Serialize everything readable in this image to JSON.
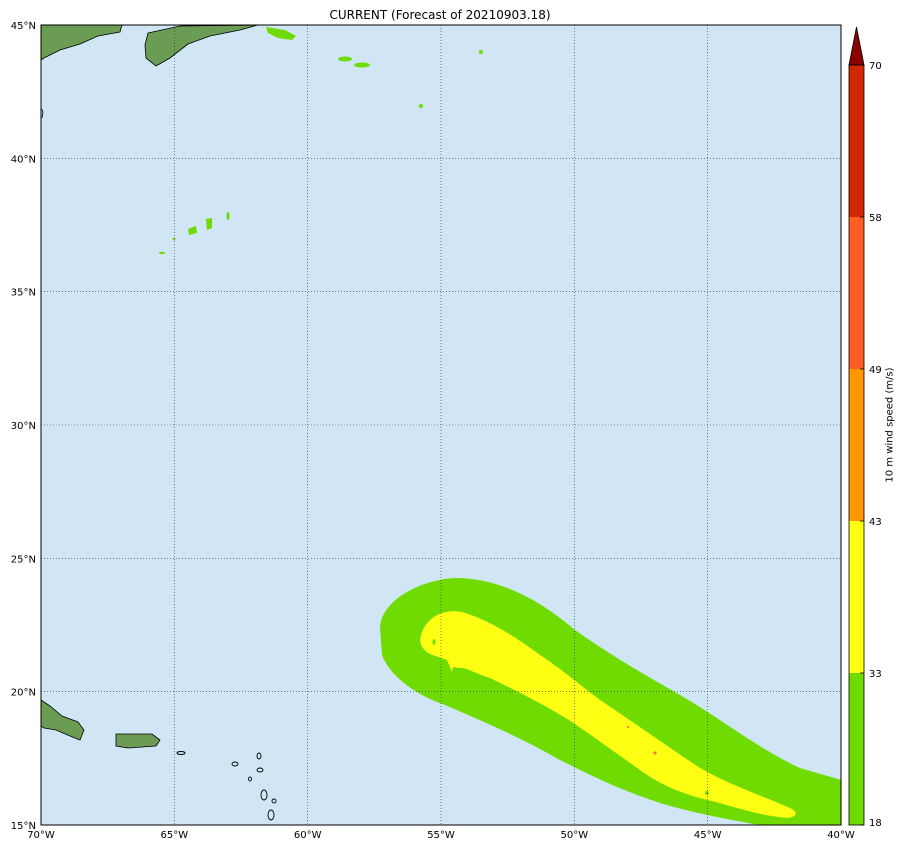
{
  "title": "CURRENT (Forecast of 20210903.18)",
  "map": {
    "lon_range": [
      -70,
      -40
    ],
    "lat_range": [
      15,
      45
    ],
    "ocean_color": "#d0e6f4",
    "land_color": "#6a9c54",
    "gridlines": "dotted",
    "lat_ticks": [
      "15°N",
      "20°N",
      "25°N",
      "30°N",
      "35°N",
      "40°N",
      "45°N"
    ],
    "lon_ticks": [
      "70°W",
      "65°W",
      "60°W",
      "55°W",
      "50°W",
      "45°W",
      "40°W"
    ]
  },
  "colorbar": {
    "label": "10 m wind speed (m/s)",
    "ticks": [
      "18",
      "33",
      "43",
      "49",
      "58",
      "70"
    ],
    "levels": [
      18,
      33,
      43,
      49,
      58,
      70
    ],
    "colors": [
      "#6fdb00",
      "#ffff14",
      "#ff9800",
      "#ff5d23",
      "#d12800"
    ],
    "extend_color": "#8b0000",
    "extend": "max"
  },
  "wind_field": {
    "green_color": "#6fdb00",
    "yellow_color": "#ffff14",
    "orange_spot_color": "#ff7a3a"
  }
}
